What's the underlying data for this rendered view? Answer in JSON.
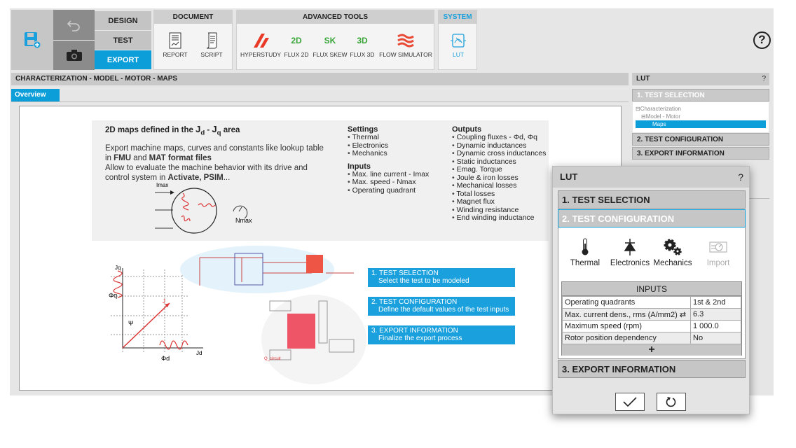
{
  "toolbar": {
    "modes": [
      "DESIGN",
      "TEST",
      "EXPORT"
    ],
    "document": {
      "title": "DOCUMENT",
      "items": [
        "REPORT",
        "SCRIPT"
      ]
    },
    "advanced": {
      "title": "ADVANCED TOOLS",
      "items": [
        "HYPERSTUDY",
        "FLUX 2D",
        "FLUX SKEW",
        "FLUX 3D",
        "FLOW SIMULATOR"
      ],
      "badges": [
        "2D",
        "SK",
        "3D"
      ]
    },
    "system": {
      "title": "SYSTEM",
      "items": [
        "LUT"
      ]
    },
    "help": "?"
  },
  "breadcrumb": "CHARACTERIZATION - MODEL - MOTOR - MAPS",
  "tabs": [
    "Overview"
  ],
  "overview": {
    "title_pre": "2D maps defined  in the ",
    "jd": "J",
    "jd_sub": "d",
    "sep": " - ",
    "jq": "J",
    "jq_sub": "q",
    "title_post": " area",
    "p1a": "Export machine maps, curves and constants like lookup table in ",
    "p1b": "FMU",
    "p1c": " and ",
    "p1d": "MAT format files",
    "p2a": "Allow to evaluate the machine behavior with its drive and control system in ",
    "p2b": "Activate, PSIM",
    "p2c": "...",
    "settings_title": "Settings",
    "settings": [
      "Thermal",
      "Electronics",
      "Mechanics"
    ],
    "inputs_title": "Inputs",
    "inputs": [
      "Max. line current - Imax",
      "Max. speed - Nmax",
      "Operating quadrant"
    ],
    "outputs_title": "Outputs",
    "outputs": [
      "Coupling fluxes - Φd, Φq",
      "Dynamic inductances",
      "Dynamic cross inductances",
      "Static inductances",
      "Emag. Torque",
      "Joule & iron losses",
      "Mechanical losses",
      "Total losses",
      "Magnet flux",
      "Winding resistance",
      "End winding inductance"
    ],
    "diagram": {
      "imax": "Imax",
      "nmax": "Nmax",
      "jq": "Jq",
      "jd": "Jd",
      "phiq": "Φq",
      "phid": "Φd",
      "j": "J",
      "psi": "Ψ",
      "q_circuit": "Q_circuit"
    },
    "steps": [
      {
        "title": "1. TEST SELECTION",
        "desc": "Select the test to be modeled"
      },
      {
        "title": "2. TEST CONFIGURATION",
        "desc": "Define the default values of the test inputs"
      },
      {
        "title": "3. EXPORT INFORMATION",
        "desc": "Finalize the export process"
      }
    ]
  },
  "side": {
    "title": "LUT",
    "help": "?",
    "sections": [
      "1. TEST SELECTION",
      "2. TEST CONFIGURATION",
      "3. EXPORT INFORMATION"
    ],
    "tree": [
      "⊟Characterization",
      "⊟Model - Motor",
      "Maps"
    ]
  },
  "dialog": {
    "title": "LUT",
    "help": "?",
    "sections": [
      "1. TEST SELECTION",
      "2. TEST CONFIGURATION",
      "3. EXPORT INFORMATION"
    ],
    "items": [
      "Thermal",
      "Electronics",
      "Mechanics",
      "Import"
    ],
    "inputs_title": "INPUTS",
    "rows": [
      {
        "label": "Operating quadrants",
        "value": "1st & 2nd"
      },
      {
        "label": "Max. current dens., rms (A/mm2)",
        "value": "6.3"
      },
      {
        "label": "Maximum speed (rpm)",
        "value": "1 000.0"
      },
      {
        "label": "Rotor position dependency",
        "value": "No"
      }
    ],
    "add": "+"
  },
  "colors": {
    "accent": "#0c9ed9",
    "toolbar_gray": "#c4c4c4"
  }
}
